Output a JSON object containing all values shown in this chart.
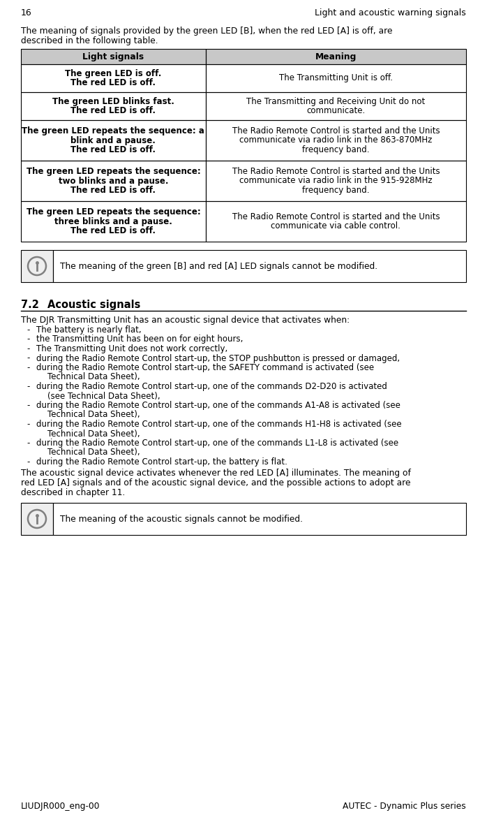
{
  "page_number": "16",
  "header_right": "Light and acoustic warning signals",
  "footer_left": "LIUDJR000_eng-00",
  "footer_right": "AUTEC - Dynamic Plus series",
  "intro_line1": "The meaning of signals provided by the green LED [B], when the red LED [A] is off, are",
  "intro_line2": "described in the following table.",
  "table_header": [
    "Light signals",
    "Meaning"
  ],
  "table_rows": [
    {
      "left_lines": [
        "The green LED is off.",
        "The red LED is off."
      ],
      "right_lines": [
        "The Transmitting Unit is off."
      ]
    },
    {
      "left_lines": [
        "The green LED blinks fast.",
        "The red LED is off."
      ],
      "right_lines": [
        "The Transmitting and Receiving Unit do not",
        "communicate."
      ]
    },
    {
      "left_lines": [
        "The green LED repeats the sequence: a",
        "blink and a pause.",
        "The red LED is off."
      ],
      "right_lines": [
        "The Radio Remote Control is started and the Units",
        "communicate via radio link in the 863-870MHz",
        "frequency band."
      ]
    },
    {
      "left_lines": [
        "The green LED repeats the sequence:",
        "two blinks and a pause.",
        "The red LED is off."
      ],
      "right_lines": [
        "The Radio Remote Control is started and the Units",
        "communicate via radio link in the 915-928MHz",
        "frequency band."
      ]
    },
    {
      "left_lines": [
        "The green LED repeats the sequence:",
        "three blinks and a pause.",
        "The red LED is off."
      ],
      "right_lines": [
        "The Radio Remote Control is started and the Units",
        "communicate via cable control."
      ]
    }
  ],
  "note1_text": "The meaning of the green [B] and red [A] LED signals cannot be modified.",
  "section_label": "7.2",
  "section_title": "Acoustic signals",
  "section_intro": "The DJR Transmitting Unit has an acoustic signal device that activates when:",
  "bullet_items": [
    [
      "The battery is nearly flat,"
    ],
    [
      "the Transmitting Unit has been on for eight hours,"
    ],
    [
      "The Transmitting Unit does not work correctly,"
    ],
    [
      "during the Radio Remote Control start-up, the STOP pushbutton is pressed or damaged,"
    ],
    [
      "during the Radio Remote Control start-up, the SAFETY command is activated (see",
      "Technical Data Sheet),"
    ],
    [
      "during the Radio Remote Control start-up, one of the commands D2-D20 is activated",
      "(see Technical Data Sheet),"
    ],
    [
      "during the Radio Remote Control start-up, one of the commands A1-A8 is activated (see",
      "Technical Data Sheet),"
    ],
    [
      "during the Radio Remote Control start-up, one of the commands H1-H8 is activated (see",
      "Technical Data Sheet),"
    ],
    [
      "during the Radio Remote Control start-up, one of the commands L1-L8 is activated (see",
      "Technical Data Sheet),"
    ],
    [
      "during the Radio Remote Control start-up, the battery is flat."
    ]
  ],
  "closing_lines": [
    "The acoustic signal device activates whenever the red LED [A] illuminates. The meaning of",
    "red LED [A] signals and of the acoustic signal device, and the possible actions to adopt are",
    "described in chapter 11."
  ],
  "note2_text": "The meaning of the acoustic signals cannot be modified.",
  "bg_color": "#ffffff",
  "text_color": "#000000",
  "table_header_bg": "#c8c8c8"
}
